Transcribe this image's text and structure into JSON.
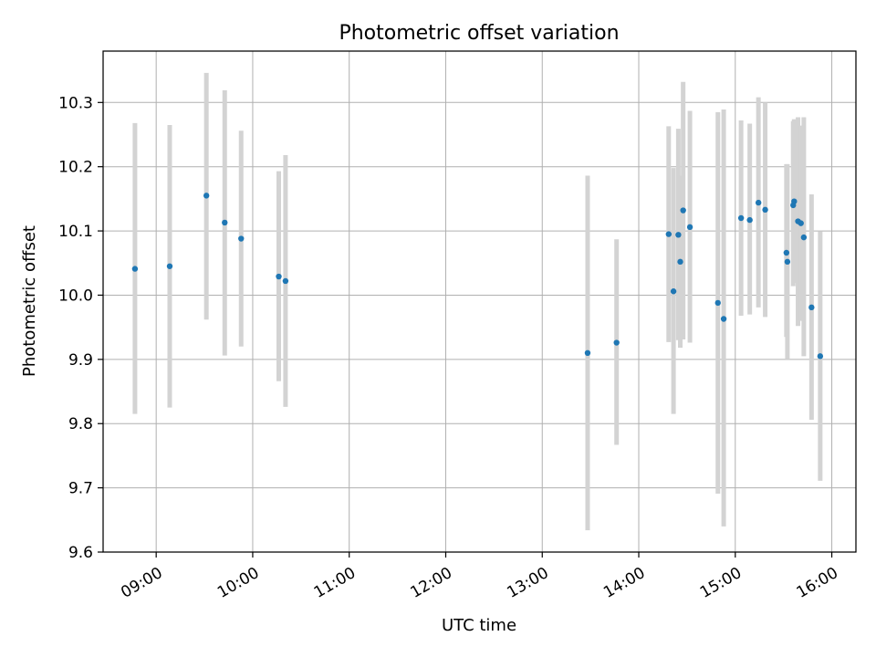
{
  "chart_data": {
    "type": "scatter",
    "title": "Photometric offset variation",
    "xlabel": "UTC time",
    "ylabel": "Photometric offset",
    "xlim_hours": [
      8.45,
      16.25
    ],
    "ylim": [
      9.6,
      10.38
    ],
    "x_ticks": [
      {
        "value": 9,
        "label": "09:00"
      },
      {
        "value": 10,
        "label": "10:00"
      },
      {
        "value": 11,
        "label": "11:00"
      },
      {
        "value": 12,
        "label": "12:00"
      },
      {
        "value": 13,
        "label": "13:00"
      },
      {
        "value": 14,
        "label": "14:00"
      },
      {
        "value": 15,
        "label": "15:00"
      },
      {
        "value": 16,
        "label": "16:00"
      }
    ],
    "y_ticks": [
      {
        "value": 9.6,
        "label": "9.6"
      },
      {
        "value": 9.7,
        "label": "9.7"
      },
      {
        "value": 9.8,
        "label": "9.8"
      },
      {
        "value": 9.9,
        "label": "9.9"
      },
      {
        "value": 10.0,
        "label": "10.0"
      },
      {
        "value": 10.1,
        "label": "10.1"
      },
      {
        "value": 10.2,
        "label": "10.2"
      },
      {
        "value": 10.3,
        "label": "10.3"
      }
    ],
    "grid": true,
    "colors": {
      "point": "#1f77b4",
      "errorbar": "#d3d3d3",
      "grid": "#b0b0b0"
    },
    "points": [
      {
        "t": "08:47",
        "x": 8.78,
        "y": 10.041,
        "lo": 9.815,
        "hi": 10.268
      },
      {
        "t": "09:08",
        "x": 9.14,
        "y": 10.045,
        "lo": 9.825,
        "hi": 10.265
      },
      {
        "t": "09:31",
        "x": 9.52,
        "y": 10.155,
        "lo": 9.962,
        "hi": 10.346
      },
      {
        "t": "09:43",
        "x": 9.71,
        "y": 10.113,
        "lo": 9.906,
        "hi": 10.319
      },
      {
        "t": "09:53",
        "x": 9.88,
        "y": 10.088,
        "lo": 9.92,
        "hi": 10.256
      },
      {
        "t": "10:16",
        "x": 10.27,
        "y": 10.029,
        "lo": 9.866,
        "hi": 10.193
      },
      {
        "t": "10:20",
        "x": 10.34,
        "y": 10.022,
        "lo": 9.826,
        "hi": 10.218
      },
      {
        "t": "13:28",
        "x": 13.47,
        "y": 9.91,
        "lo": 9.634,
        "hi": 10.186
      },
      {
        "t": "13:46",
        "x": 13.77,
        "y": 9.926,
        "lo": 9.767,
        "hi": 10.087
      },
      {
        "t": "14:18",
        "x": 14.31,
        "y": 10.095,
        "lo": 9.927,
        "hi": 10.263
      },
      {
        "t": "14:22",
        "x": 14.36,
        "y": 10.006,
        "lo": 9.815,
        "hi": 10.198
      },
      {
        "t": "14:24",
        "x": 14.41,
        "y": 10.094,
        "lo": 9.93,
        "hi": 10.259
      },
      {
        "t": "14:26",
        "x": 14.43,
        "y": 10.052,
        "lo": 9.918,
        "hi": 10.186
      },
      {
        "t": "14:28",
        "x": 14.46,
        "y": 10.132,
        "lo": 9.931,
        "hi": 10.332
      },
      {
        "t": "14:32",
        "x": 14.53,
        "y": 10.106,
        "lo": 9.926,
        "hi": 10.287
      },
      {
        "t": "14:49",
        "x": 14.82,
        "y": 9.988,
        "lo": 9.691,
        "hi": 10.285
      },
      {
        "t": "14:53",
        "x": 14.88,
        "y": 9.963,
        "lo": 9.64,
        "hi": 10.289
      },
      {
        "t": "15:03",
        "x": 15.06,
        "y": 10.12,
        "lo": 9.968,
        "hi": 10.272
      },
      {
        "t": "15:09",
        "x": 15.15,
        "y": 10.117,
        "lo": 9.97,
        "hi": 10.267
      },
      {
        "t": "15:14",
        "x": 15.24,
        "y": 10.144,
        "lo": 9.981,
        "hi": 10.308
      },
      {
        "t": "15:18",
        "x": 15.31,
        "y": 10.133,
        "lo": 9.966,
        "hi": 10.3
      },
      {
        "t": "15:32",
        "x": 15.53,
        "y": 10.066,
        "lo": 9.935,
        "hi": 10.204
      },
      {
        "t": "15:32",
        "x": 15.54,
        "y": 10.052,
        "lo": 9.9,
        "hi": 10.204
      },
      {
        "t": "15:36",
        "x": 15.6,
        "y": 10.14,
        "lo": 10.014,
        "hi": 10.271
      },
      {
        "t": "15:36",
        "x": 15.61,
        "y": 10.146,
        "lo": 10.019,
        "hi": 10.274
      },
      {
        "t": "15:39",
        "x": 15.65,
        "y": 10.115,
        "lo": 9.952,
        "hi": 10.277
      },
      {
        "t": "15:41",
        "x": 15.68,
        "y": 10.112,
        "lo": 9.96,
        "hi": 10.264
      },
      {
        "t": "15:42",
        "x": 15.71,
        "y": 10.09,
        "lo": 9.905,
        "hi": 10.277
      },
      {
        "t": "15:47",
        "x": 15.79,
        "y": 9.981,
        "lo": 9.806,
        "hi": 10.157
      },
      {
        "t": "15:53",
        "x": 15.88,
        "y": 9.905,
        "lo": 9.711,
        "hi": 10.099
      }
    ]
  }
}
